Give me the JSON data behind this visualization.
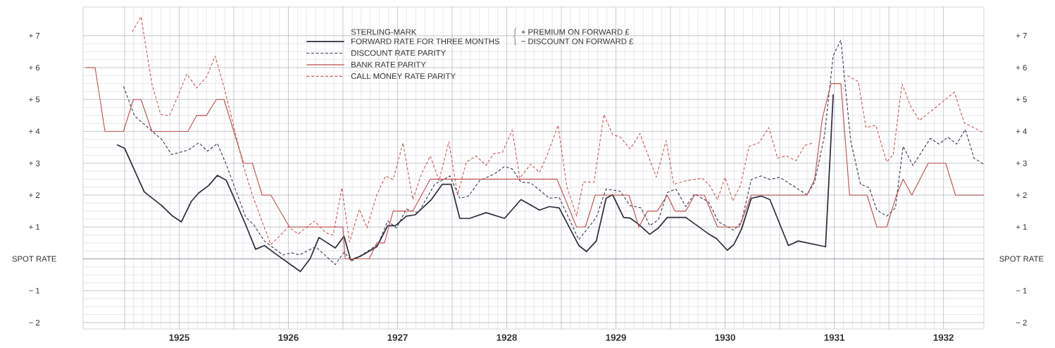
{
  "chart_data": {
    "type": "line",
    "annotations": [
      "+ PREMIUM ON FORWARD £",
      "− DISCOUNT ON FORWARD £"
    ],
    "xlim": [
      1924.62,
      1932.87
    ],
    "ylim": [
      -2.2,
      7.9
    ],
    "y2lim": [
      -2.2,
      7.9
    ],
    "xticks": [
      {
        "value": 1925,
        "label": null
      },
      {
        "value": 1925.5,
        "label": "1925"
      },
      {
        "value": 1926,
        "label": null
      },
      {
        "value": 1926.5,
        "label": "1926"
      },
      {
        "value": 1927,
        "label": null
      },
      {
        "value": 1927.5,
        "label": "1927"
      },
      {
        "value": 1928,
        "label": null
      },
      {
        "value": 1928.5,
        "label": "1928"
      },
      {
        "value": 1929,
        "label": null
      },
      {
        "value": 1929.5,
        "label": "1929"
      },
      {
        "value": 1930,
        "label": null
      },
      {
        "value": 1930.5,
        "label": "1930"
      },
      {
        "value": 1931,
        "label": null
      },
      {
        "value": 1931.5,
        "label": "1931"
      },
      {
        "value": 1932,
        "label": null
      },
      {
        "value": 1932.5,
        "label": "1932"
      }
    ],
    "yticks": [
      {
        "value": -2,
        "label": "− 2"
      },
      {
        "value": -1,
        "label": "− 1"
      },
      {
        "value": 0,
        "label": "SPOT RATE"
      },
      {
        "value": 1,
        "label": "+ 1"
      },
      {
        "value": 2,
        "label": "+ 2"
      },
      {
        "value": 3,
        "label": "+ 3"
      },
      {
        "value": 4,
        "label": "+ 4"
      },
      {
        "value": 5,
        "label": "+ 5"
      },
      {
        "value": 6,
        "label": "+ 6"
      },
      {
        "value": 7,
        "label": "+ 7"
      }
    ],
    "y2ticks": [
      {
        "value": -2,
        "label": "− 2"
      },
      {
        "value": -1,
        "label": "− 1"
      },
      {
        "value": 0,
        "label": "SPOT RATE"
      },
      {
        "value": 1,
        "label": "+ 1"
      },
      {
        "value": 2,
        "label": "+ 2"
      },
      {
        "value": 3,
        "label": "+ 3"
      },
      {
        "value": 4,
        "label": "+ 4"
      },
      {
        "value": 5,
        "label": "+ 5"
      },
      {
        "value": 6,
        "label": "+ 6"
      },
      {
        "value": 7,
        "label": "+ 7"
      }
    ],
    "grid": true,
    "legend": "top",
    "ref_lines": [
      {
        "axis": "y",
        "value": 0,
        "color": "#9a9ea8"
      }
    ],
    "series": [
      {
        "name": "STERLING-MARK FORWARD RATE FOR THREE MONTHS",
        "color": "#2c2f3b",
        "line_style": "solid",
        "x": [
          1924.93,
          1925.0,
          1925.18,
          1925.34,
          1925.44,
          1925.52,
          1925.61,
          1925.68,
          1925.77,
          1925.85,
          1925.93,
          1926.01,
          1926.11,
          1926.2,
          1926.28,
          1926.37,
          1926.61,
          1926.7,
          1926.78,
          1926.93,
          1927.01,
          1927.07,
          1927.16,
          1927.31,
          1927.41,
          1927.48,
          1927.58,
          1927.66,
          1927.81,
          1927.91,
          1927.99,
          1928.07,
          1928.16,
          1928.31,
          1928.48,
          1928.63,
          1928.8,
          1928.89,
          1928.98,
          1929.16,
          1929.23,
          1929.32,
          1929.41,
          1929.47,
          1929.57,
          1929.63,
          1929.71,
          1929.81,
          1929.89,
          1929.97,
          1930.14,
          1930.35,
          1930.42,
          1930.52,
          1930.58,
          1930.65,
          1930.74,
          1930.83,
          1930.91,
          1931.08,
          1931.17,
          1931.42,
          1931.49
        ],
        "values": [
          3.58,
          3.47,
          2.1,
          1.67,
          1.34,
          1.16,
          1.8,
          2.07,
          2.3,
          2.62,
          2.47,
          1.86,
          1.06,
          0.3,
          0.42,
          0.19,
          -0.4,
          0.01,
          0.67,
          0.34,
          0.71,
          -0.03,
          0.08,
          0.38,
          1.04,
          1.04,
          1.34,
          1.38,
          1.86,
          2.34,
          2.34,
          1.27,
          1.27,
          1.45,
          1.27,
          1.86,
          1.53,
          1.64,
          1.6,
          0.42,
          0.23,
          0.56,
          1.9,
          2.01,
          1.3,
          1.28,
          1.08,
          0.77,
          0.97,
          1.3,
          1.3,
          0.78,
          0.64,
          0.27,
          0.45,
          0.93,
          1.9,
          1.97,
          1.86,
          0.42,
          0.56,
          0.38,
          5.16
        ]
      },
      {
        "name": "DISCOUNT RATE PARITY",
        "color": "#3a3f52",
        "line_style": "dashed",
        "x": [
          1924.99,
          1925.09,
          1925.25,
          1925.34,
          1925.43,
          1925.58,
          1925.68,
          1925.76,
          1925.85,
          1925.93,
          1926.11,
          1926.18,
          1926.28,
          1926.45,
          1926.53,
          1926.6,
          1926.75,
          1926.93,
          1927.01,
          1927.08,
          1927.17,
          1927.32,
          1927.41,
          1927.49,
          1927.58,
          1927.69,
          1927.84,
          1927.98,
          1928.07,
          1928.15,
          1928.25,
          1928.39,
          1928.48,
          1928.55,
          1928.63,
          1928.72,
          1928.8,
          1928.89,
          1928.98,
          1929.16,
          1929.32,
          1929.41,
          1929.54,
          1929.63,
          1929.73,
          1929.81,
          1929.89,
          1929.97,
          1930.05,
          1930.14,
          1930.22,
          1930.35,
          1930.44,
          1930.58,
          1930.65,
          1930.74,
          1930.83,
          1930.91,
          1931.0,
          1931.25,
          1931.32,
          1931.41,
          1931.49,
          1931.56,
          1931.65,
          1931.74,
          1931.82,
          1931.89,
          1931.98,
          1932.06,
          1932.13,
          1932.22,
          1932.38,
          1932.46,
          1932.54,
          1932.62,
          1932.7,
          1932.78,
          1932.87
        ],
        "values": [
          5.41,
          4.49,
          4.01,
          3.75,
          3.27,
          3.41,
          3.64,
          3.38,
          3.62,
          2.97,
          1.3,
          1.08,
          0.56,
          0.12,
          0.19,
          0.12,
          0.38,
          -0.18,
          0.21,
          -0.07,
          0.12,
          0.45,
          1.19,
          0.97,
          1.56,
          1.45,
          2.34,
          2.6,
          1.9,
          1.97,
          2.45,
          2.67,
          2.9,
          2.82,
          2.41,
          2.38,
          2.16,
          1.9,
          1.93,
          0.6,
          1.3,
          2.19,
          2.12,
          1.67,
          1.6,
          1.04,
          1.23,
          2.08,
          2.19,
          1.64,
          2.04,
          1.78,
          1.16,
          0.9,
          1.16,
          2.49,
          2.6,
          2.49,
          2.56,
          2.01,
          2.41,
          3.86,
          6.38,
          6.86,
          3.71,
          2.34,
          2.23,
          1.53,
          1.34,
          1.6,
          3.53,
          2.93,
          3.78,
          3.6,
          3.82,
          3.6,
          4.06,
          3.16,
          2.97
        ]
      },
      {
        "name": "BANK RATE PARITY",
        "color": "#c0504f",
        "line_style": "solid",
        "x": [
          1924.64,
          1924.73,
          1924.82,
          1924.99,
          1925.08,
          1925.15,
          1925.25,
          1925.58,
          1925.66,
          1925.75,
          1925.84,
          1925.91,
          1926.09,
          1926.17,
          1926.26,
          1926.34,
          1926.51,
          1927.0,
          1927.02,
          1927.24,
          1927.31,
          1927.38,
          1927.46,
          1927.64,
          1927.8,
          1928.96,
          1929.14,
          1929.22,
          1929.31,
          1929.62,
          1929.71,
          1929.79,
          1929.88,
          1929.97,
          1930.04,
          1930.14,
          1930.22,
          1930.31,
          1930.43,
          1930.63,
          1930.74,
          1931.25,
          1931.32,
          1931.39,
          1931.47,
          1931.56,
          1931.64,
          1931.8,
          1931.89,
          1931.98,
          1932.07,
          1932.13,
          1932.21,
          1932.36,
          1932.52,
          1932.61,
          1932.87
        ],
        "values": [
          6,
          6,
          4,
          4,
          5,
          5,
          4,
          4,
          4.5,
          4.5,
          5,
          5,
          3,
          3,
          2,
          2,
          1,
          1,
          0,
          0,
          0.5,
          0.5,
          1.5,
          1.5,
          2.5,
          2.5,
          1,
          1,
          2,
          2,
          1,
          1.5,
          1.5,
          2,
          1.5,
          1.5,
          2,
          2,
          1,
          1,
          2,
          2,
          2.5,
          4.4,
          5.5,
          5.5,
          2,
          2,
          1,
          1,
          2,
          2.5,
          2,
          3,
          3,
          2,
          2
        ]
      },
      {
        "name": "CALL MONEY RATE PARITY",
        "color": "#c8605a",
        "line_style": "dashed",
        "x": [
          1925.07,
          1925.15,
          1925.25,
          1925.33,
          1925.41,
          1925.48,
          1925.57,
          1925.66,
          1925.75,
          1925.83,
          1925.92,
          1926.01,
          1926.09,
          1926.17,
          1926.26,
          1926.34,
          1926.43,
          1926.5,
          1926.59,
          1926.74,
          1926.84,
          1926.91,
          1926.99,
          1927.06,
          1927.15,
          1927.22,
          1927.31,
          1927.39,
          1927.46,
          1927.55,
          1927.64,
          1927.72,
          1927.8,
          1927.88,
          1927.97,
          1928.05,
          1928.13,
          1928.22,
          1928.31,
          1928.38,
          1928.46,
          1928.55,
          1928.62,
          1928.72,
          1928.8,
          1928.88,
          1928.97,
          1929.05,
          1929.14,
          1929.2,
          1929.3,
          1929.39,
          1929.47,
          1929.54,
          1929.63,
          1929.72,
          1929.87,
          1929.96,
          1930.03,
          1930.14,
          1930.29,
          1930.36,
          1930.43,
          1930.5,
          1930.57,
          1930.64,
          1930.72,
          1930.81,
          1930.9,
          1930.98,
          1931.06,
          1931.15,
          1931.23,
          1931.31,
          1931.52,
          1931.62,
          1931.72,
          1931.79,
          1931.88,
          1931.98,
          1932.04,
          1932.12,
          1932.2,
          1932.28,
          1932.6,
          1932.69,
          1932.86
        ],
        "values": [
          7.12,
          7.6,
          5.49,
          4.53,
          4.49,
          5.04,
          5.8,
          5.36,
          5.71,
          6.36,
          5.27,
          4.01,
          2.9,
          2.01,
          1.16,
          0.45,
          0.75,
          1.01,
          0.78,
          1.19,
          0.82,
          0.75,
          2.23,
          0.53,
          1.56,
          0.97,
          2.01,
          2.6,
          2.49,
          3.64,
          1.86,
          2.67,
          3.23,
          2.45,
          3.67,
          2.01,
          3.04,
          3.23,
          2.93,
          3.3,
          3.34,
          4.04,
          2.53,
          2.97,
          2.71,
          3.34,
          4.19,
          2.27,
          1.34,
          2.41,
          2.41,
          4.53,
          3.9,
          3.82,
          3.45,
          3.93,
          2.56,
          3.71,
          2.34,
          2.45,
          2.53,
          2.3,
          1.86,
          2.56,
          1.82,
          2.3,
          3.53,
          3.64,
          4.12,
          3.16,
          3.23,
          3.08,
          3.56,
          3.64,
          null,
          5.75,
          5.56,
          4.12,
          4.19,
          3.04,
          3.27,
          5.49,
          4.78,
          4.34,
          5.23,
          4.27,
          3.97
        ]
      }
    ]
  }
}
